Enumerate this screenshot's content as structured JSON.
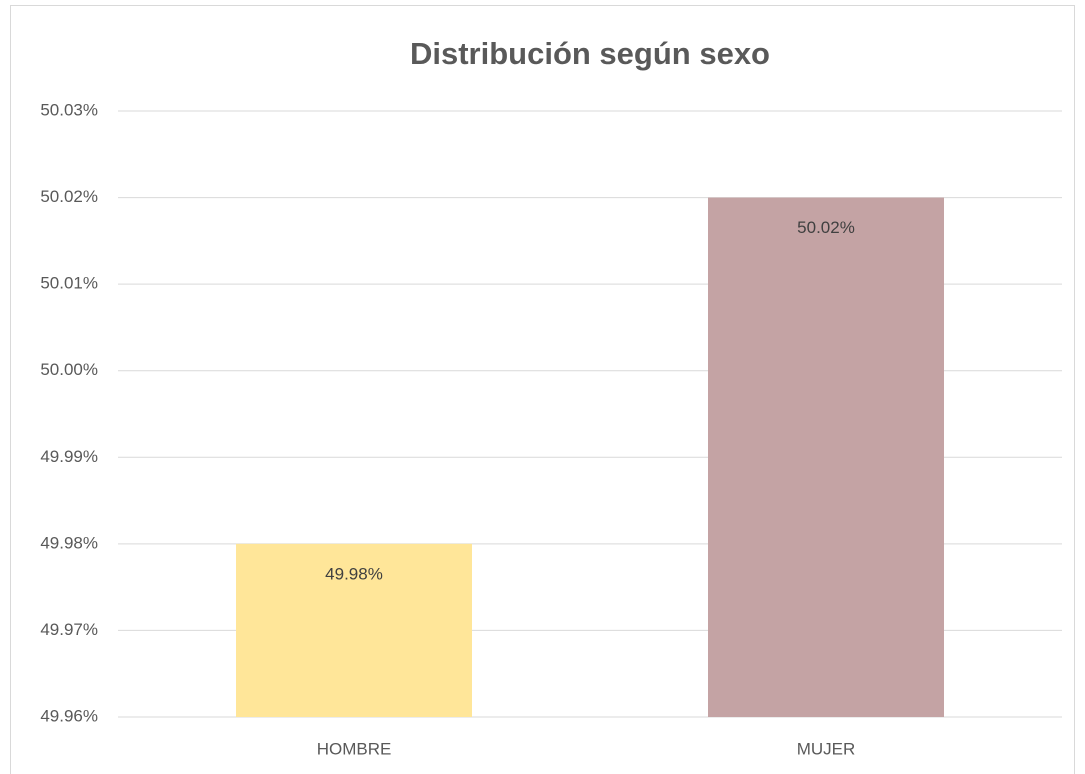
{
  "chart_data": {
    "type": "bar",
    "title": "Distribución según sexo",
    "categories": [
      "HOMBRE",
      "MUJER"
    ],
    "values": [
      49.98,
      50.02
    ],
    "value_labels": [
      "49.98%",
      "50.02%"
    ],
    "colors": [
      "#ffe699",
      "#c4a3a4"
    ],
    "ylim": [
      49.96,
      50.03
    ],
    "yticks": [
      {
        "value": 49.96,
        "label": "49.96%"
      },
      {
        "value": 49.97,
        "label": "49.97%"
      },
      {
        "value": 49.98,
        "label": "49.98%"
      },
      {
        "value": 49.99,
        "label": "49.99%"
      },
      {
        "value": 50.0,
        "label": "50.00%"
      },
      {
        "value": 50.01,
        "label": "50.01%"
      },
      {
        "value": 50.02,
        "label": "50.02%"
      },
      {
        "value": 50.03,
        "label": "50.03%"
      }
    ],
    "grid": true
  }
}
